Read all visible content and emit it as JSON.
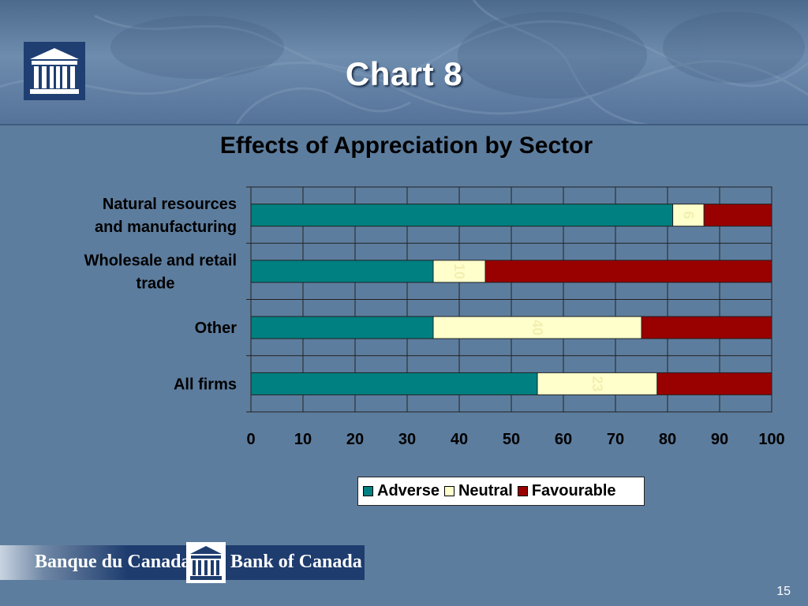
{
  "slide": {
    "title": "Chart 8",
    "page_number": "15"
  },
  "footer": {
    "left_text": "Banque du Canada",
    "right_text": "Bank of Canada"
  },
  "colors": {
    "adverse": "#008080",
    "neutral": "#ffffcc",
    "favourable": "#990000",
    "background": "#5d7d9e",
    "banner": "#1e3c6e"
  },
  "icons": {
    "header_logo": "bank-building-icon",
    "footer_logo": "bank-building-icon"
  },
  "chart_data": {
    "type": "bar",
    "orientation": "horizontal",
    "stacked": true,
    "title": "Effects of Appreciation by Sector",
    "categories": [
      [
        "Natural resources",
        "and manufacturing"
      ],
      [
        "Wholesale and retail",
        "trade"
      ],
      [
        "Other"
      ],
      [
        "All firms"
      ]
    ],
    "series": [
      {
        "name": "Adverse",
        "values": [
          81,
          35,
          35,
          55
        ]
      },
      {
        "name": "Neutral",
        "values": [
          6,
          10,
          40,
          23
        ]
      },
      {
        "name": "Favourable",
        "values": [
          13,
          55,
          25,
          22
        ]
      }
    ],
    "data_labels": [
      {
        "series": 1,
        "category": 0,
        "text": "6"
      },
      {
        "series": 1,
        "category": 1,
        "text": "10"
      },
      {
        "series": 1,
        "category": 2,
        "text": "40"
      },
      {
        "series": 1,
        "category": 3,
        "text": "23"
      }
    ],
    "x_ticks": [
      "0",
      "10",
      "20",
      "30",
      "40",
      "50",
      "60",
      "70",
      "80",
      "90",
      "100"
    ],
    "xlim": [
      0,
      100
    ],
    "grid": true,
    "legend_position": "bottom"
  }
}
